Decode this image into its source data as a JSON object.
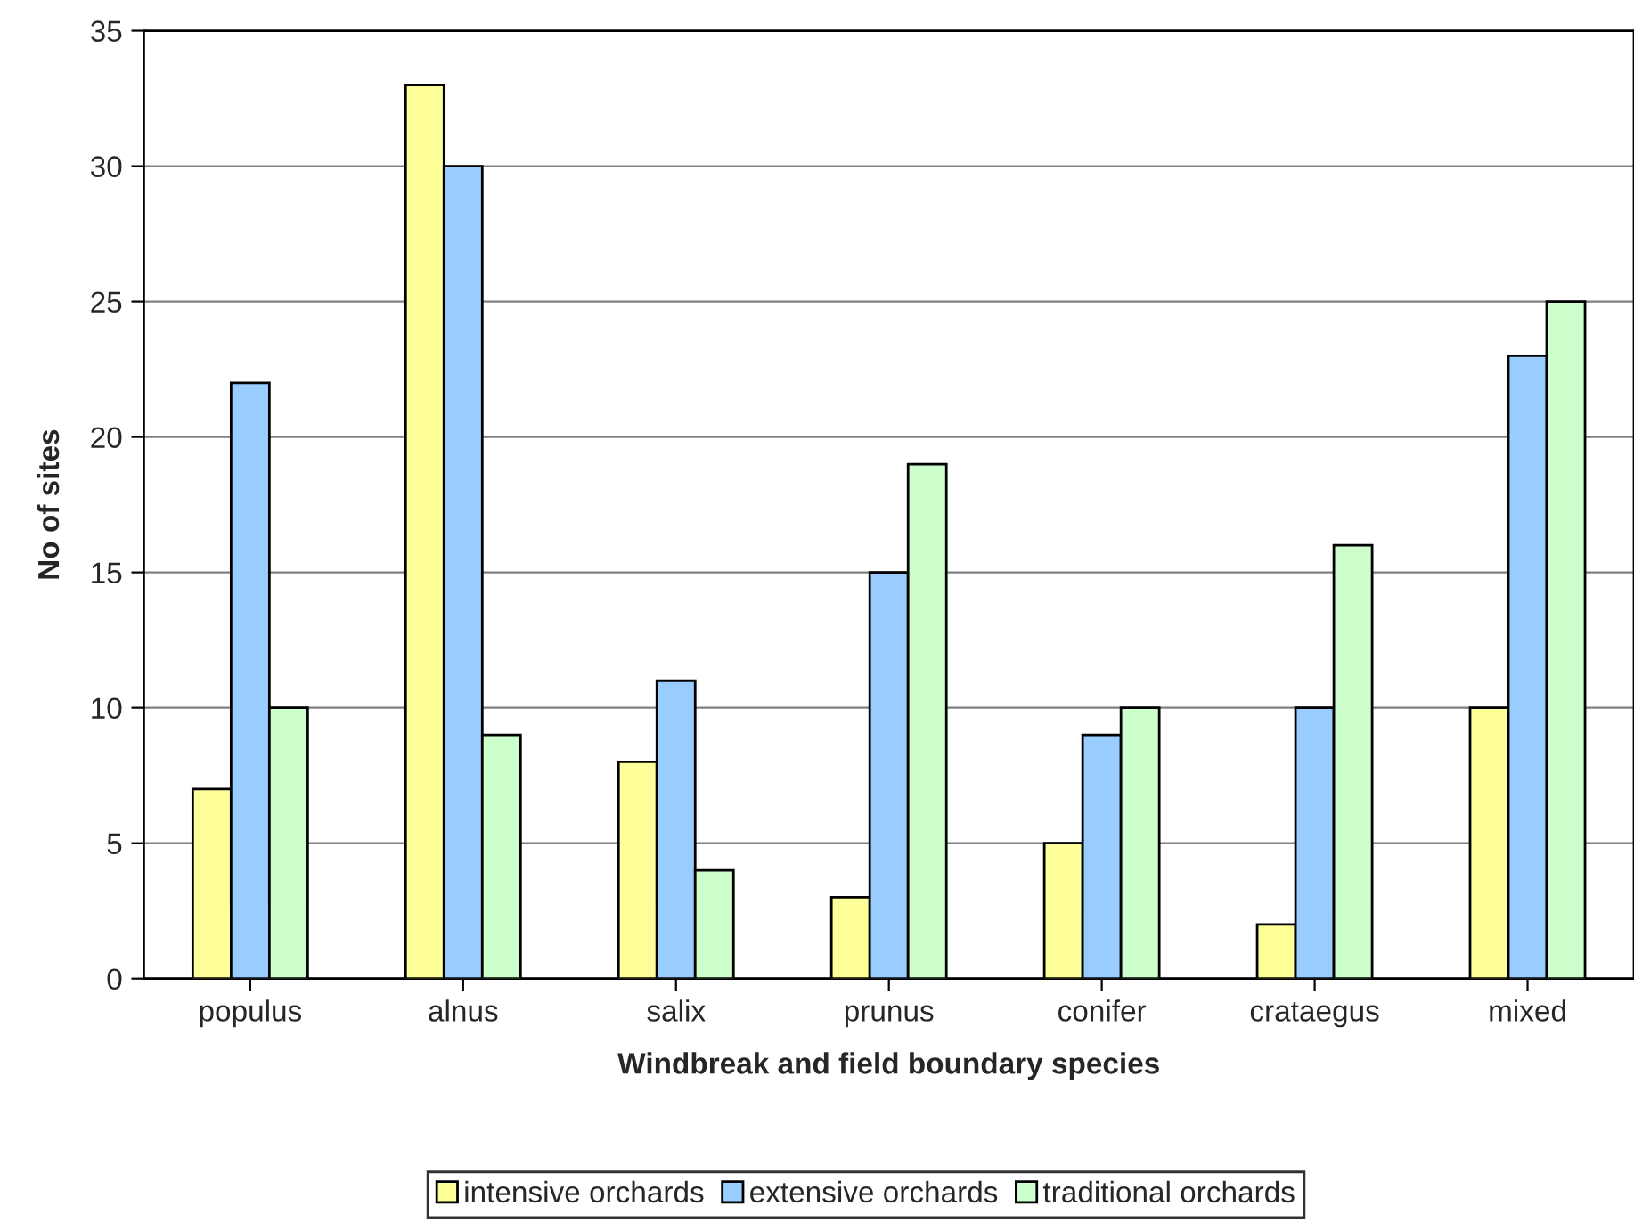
{
  "chart_data": {
    "type": "bar",
    "xlabel": "Windbreak and field boundary species",
    "ylabel": "No of sites",
    "categories": [
      "populus",
      "alnus",
      "salix",
      "prunus",
      "conifer",
      "crataegus",
      "mixed"
    ],
    "series": [
      {
        "name": "intensive orchards",
        "color": "#ffff99",
        "values": [
          7,
          33,
          8,
          3,
          5,
          2,
          10
        ]
      },
      {
        "name": "extensive orchards",
        "color": "#99ccff",
        "values": [
          22,
          30,
          11,
          15,
          9,
          10,
          23
        ]
      },
      {
        "name": "traditional orchards",
        "color": "#ccffcc",
        "values": [
          10,
          9,
          4,
          19,
          10,
          16,
          25
        ]
      }
    ],
    "ylim": [
      0,
      35
    ],
    "yticks": [
      0,
      5,
      10,
      15,
      20,
      25,
      30,
      35
    ],
    "grid": "y",
    "legend": "bottom"
  }
}
